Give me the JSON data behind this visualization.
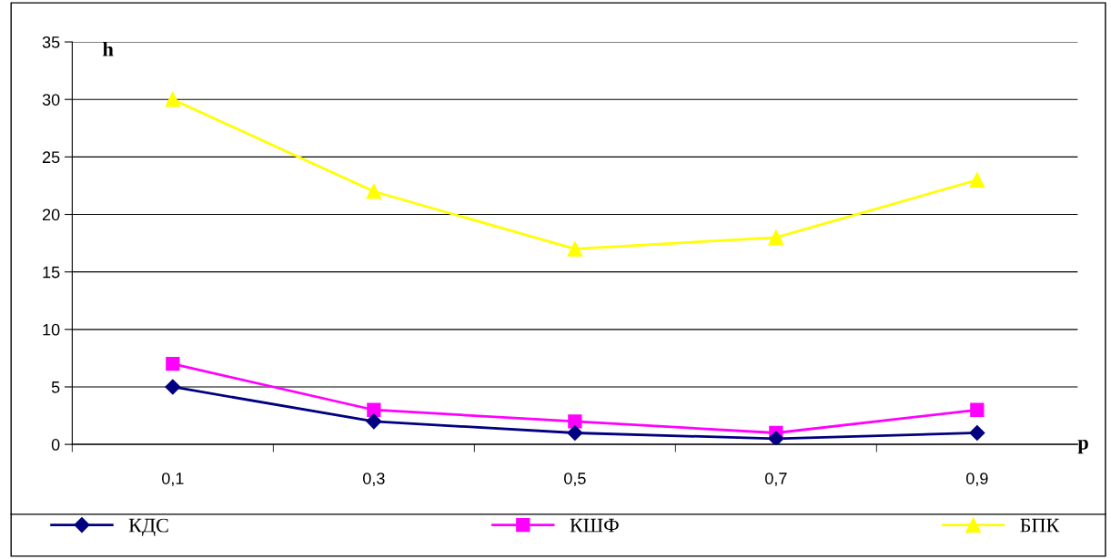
{
  "chart_data": {
    "type": "line",
    "xlabel": "p",
    "ylabel": "h",
    "categories": [
      "0,1",
      "0,3",
      "0,5",
      "0,7",
      "0,9"
    ],
    "series": [
      {
        "name": "КДС",
        "color": "#000080",
        "marker": "diamond",
        "values": [
          5,
          2,
          1,
          0.5,
          1
        ]
      },
      {
        "name": "КШФ",
        "color": "#ff00ff",
        "marker": "square",
        "values": [
          7,
          3,
          2,
          1,
          3
        ]
      },
      {
        "name": "БПК",
        "color": "#ffff00",
        "marker": "triangle",
        "values": [
          30,
          22,
          17,
          18,
          23
        ]
      }
    ],
    "ylim": [
      0,
      35
    ],
    "yticks": [
      0,
      5,
      10,
      15,
      20,
      25,
      30,
      35
    ],
    "grid": "y",
    "legend": "bottom",
    "line_style": "solid"
  }
}
